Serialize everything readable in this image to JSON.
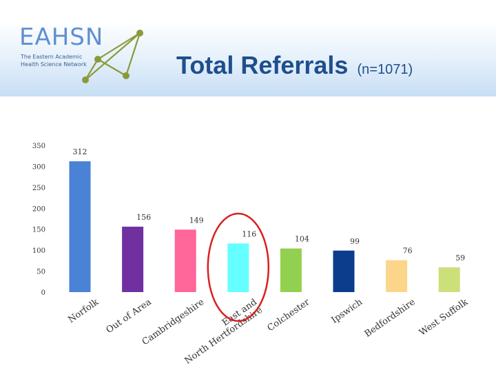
{
  "logo": {
    "wordmark": "EAHSN",
    "subtitle_line1": "The Eastern Academic",
    "subtitle_line2": "Health Science Network",
    "accent_color": "#5f8fd0",
    "node_color": "#8a9a3a"
  },
  "header": {
    "title": "Total Referrals",
    "subtitle": "(n=1071)",
    "title_color": "#1f4e8c"
  },
  "chart_data": {
    "type": "bar",
    "categories": [
      "Norfolk",
      "Out of Area",
      "Cambridgeshire",
      "East and North Hertfordshire",
      "Colchester",
      "Ipswich",
      "Bedfordshire",
      "West Suffolk"
    ],
    "values": [
      312,
      156,
      149,
      116,
      104,
      99,
      76,
      59
    ],
    "colors": [
      "#4a82d6",
      "#7030a0",
      "#ff6699",
      "#66ffff",
      "#92d050",
      "#0b3d8c",
      "#fbd58a",
      "#cce07a"
    ],
    "ylim": [
      0,
      350
    ],
    "yticks": [
      0,
      50,
      100,
      150,
      200,
      250,
      300,
      350
    ],
    "grid": false,
    "legend": "none",
    "highlight_category": "East and North Hertfordshire",
    "highlight_color": "#d91f1f"
  }
}
